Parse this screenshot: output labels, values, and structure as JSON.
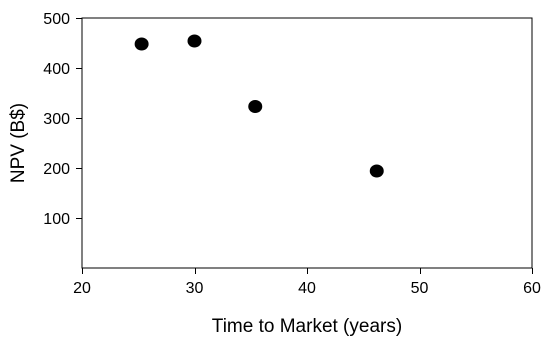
{
  "chart_data": {
    "type": "scatter",
    "title": "",
    "xlabel": "Time to Market (years)",
    "ylabel": "NPV (B$)",
    "xlim": [
      20,
      60
    ],
    "ylim": [
      0,
      500
    ],
    "x_ticks": [
      20,
      30,
      40,
      50,
      60
    ],
    "y_ticks": [
      100,
      200,
      300,
      400,
      500
    ],
    "grid": false,
    "legend": "none",
    "marker_color": "#000000",
    "series": [
      {
        "x": [
          25.3,
          30.0,
          35.4,
          46.2
        ],
        "y": [
          448,
          454,
          323,
          194
        ]
      }
    ]
  }
}
